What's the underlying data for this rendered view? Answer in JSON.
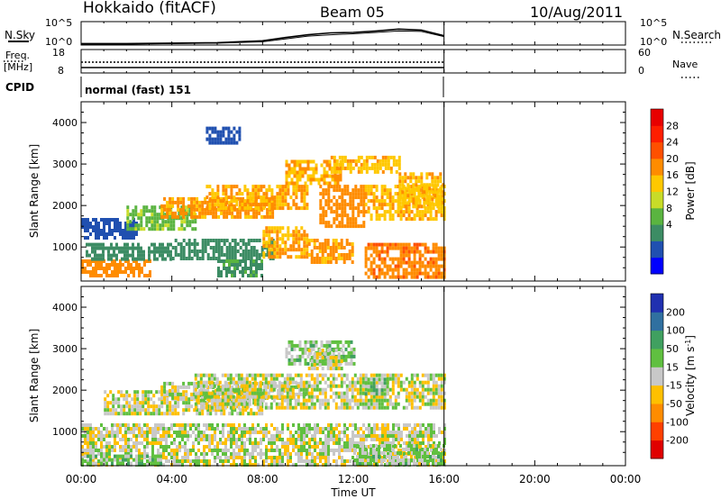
{
  "header": {
    "station": "Hokkaido (fitACF)",
    "beam": "Beam 05",
    "date": "10/Aug/2011"
  },
  "panels": {
    "nsky_label": "N.Sky",
    "nsearch_label": "N.Search",
    "nsky_ticks": [
      "10^5",
      "10^0"
    ],
    "freq_label": "Freq.",
    "freq_unit": "[MHz]",
    "freq_ticks": [
      "18",
      "8"
    ],
    "nave_label": "Nave",
    "nave_ticks": [
      "60",
      "0"
    ],
    "cpid_label": "CPID",
    "cpid_value": "normal (fast) 151"
  },
  "chart_data": [
    {
      "type": "line",
      "name": "noise-panel",
      "series": [
        {
          "name": "N.Sky",
          "x": [
            0,
            2,
            4,
            6,
            8,
            9,
            10,
            11,
            12,
            13,
            14,
            15,
            16
          ],
          "values": [
            0.3,
            0.3,
            0.4,
            0.5,
            0.9,
            1.6,
            2.2,
            2.6,
            2.7,
            3.0,
            3.4,
            3.2,
            2.0
          ]
        },
        {
          "name": "N.Search",
          "x": [
            0,
            2,
            4,
            6,
            8,
            9,
            10,
            11,
            12,
            13,
            14,
            15,
            16
          ],
          "values": [
            0.2,
            0.2,
            0.3,
            0.4,
            0.7,
            1.3,
            1.9,
            2.2,
            2.4,
            2.7,
            3.0,
            2.9,
            1.8
          ]
        }
      ],
      "xlim": [
        0,
        24
      ],
      "ylim": [
        0,
        5
      ]
    },
    {
      "type": "line",
      "name": "freq-nave-panel",
      "series": [
        {
          "name": "Freq.",
          "x": [
            0,
            16
          ],
          "values": [
            10.3,
            10.3
          ]
        },
        {
          "name": "Nave",
          "x": [
            0,
            16
          ],
          "values": [
            15,
            15
          ]
        }
      ],
      "xlim": [
        0,
        24
      ]
    },
    {
      "type": "heatmap",
      "name": "power",
      "ylabel": "Slant Range [km]",
      "xlim": [
        0,
        24
      ],
      "ylim": [
        180,
        4500
      ],
      "yticks": [
        1000,
        2000,
        3000,
        4000
      ],
      "colorbar_label": "Power [dB]",
      "colorbar_ticks": [
        "28",
        "24",
        "20",
        "16",
        "12",
        "8",
        "4"
      ],
      "colorbar_colors": [
        "#0000ff",
        "#2050b0",
        "#3c8c64",
        "#5ab440",
        "#c8dc28",
        "#ffc800",
        "#ff8c00",
        "#ff5000",
        "#ff1e00",
        "#e80000"
      ],
      "colorbar_levels": [
        0,
        4,
        8,
        12,
        16,
        20,
        24,
        28,
        32
      ],
      "regions": [
        {
          "t0": 0.0,
          "t1": 3.0,
          "r0": 300,
          "r1": 700,
          "v": 26
        },
        {
          "t0": 0.2,
          "t1": 4.0,
          "r0": 700,
          "r1": 1100,
          "v": 10
        },
        {
          "t0": 0.0,
          "t1": 2.5,
          "r0": 1200,
          "r1": 1700,
          "v": 6
        },
        {
          "t0": 2.0,
          "t1": 5.0,
          "r0": 1400,
          "r1": 2000,
          "v": 15
        },
        {
          "t0": 3.5,
          "t1": 8.5,
          "r0": 1700,
          "r1": 2200,
          "v": 25
        },
        {
          "t0": 5.5,
          "t1": 10.0,
          "r0": 1900,
          "r1": 2500,
          "v": 24
        },
        {
          "t0": 4.0,
          "t1": 8.5,
          "r0": 700,
          "r1": 1200,
          "v": 10
        },
        {
          "t0": 6.0,
          "t1": 8.0,
          "r0": 300,
          "r1": 700,
          "v": 11
        },
        {
          "t0": 8.0,
          "t1": 10.0,
          "r0": 800,
          "r1": 1500,
          "v": 24
        },
        {
          "t0": 9.0,
          "t1": 11.5,
          "r0": 2500,
          "r1": 3100,
          "v": 24
        },
        {
          "t0": 10.5,
          "t1": 12.5,
          "r0": 1500,
          "r1": 2500,
          "v": 26
        },
        {
          "t0": 11.0,
          "t1": 14.0,
          "r0": 2800,
          "r1": 3200,
          "v": 23
        },
        {
          "t0": 12.5,
          "t1": 16.0,
          "r0": 1700,
          "r1": 2500,
          "v": 23
        },
        {
          "t0": 12.5,
          "t1": 16.0,
          "r0": 300,
          "r1": 1100,
          "v": 27
        },
        {
          "t0": 14.0,
          "t1": 16.0,
          "r0": 2000,
          "r1": 2800,
          "v": 23
        },
        {
          "t0": 10.0,
          "t1": 12.0,
          "r0": 600,
          "r1": 1200,
          "v": 25
        },
        {
          "t0": 5.5,
          "t1": 7.0,
          "r0": 3500,
          "r1": 3900,
          "v": 6
        }
      ]
    },
    {
      "type": "heatmap",
      "name": "velocity",
      "xlabel": "Time UT",
      "ylabel": "Slant Range [km]",
      "xlim": [
        0,
        24
      ],
      "ylim": [
        180,
        4500
      ],
      "xticks": [
        "00:00",
        "04:00",
        "08:00",
        "12:00",
        "16:00",
        "20:00",
        "00:00"
      ],
      "yticks": [
        1000,
        2000,
        3000,
        4000
      ],
      "colorbar_label": "Velocity [m s-1]",
      "colorbar_ticks": [
        "200",
        "100",
        "50",
        "15",
        "-15",
        "-50",
        "-100",
        "-200"
      ],
      "colorbar_colors": [
        "#e00000",
        "#ff4000",
        "#ff8c00",
        "#ffc000",
        "#c8c8c8",
        "#60c040",
        "#40a060",
        "#3070a0",
        "#2030b0"
      ],
      "colorbar_levels": [
        -300,
        -200,
        -100,
        -50,
        -15,
        15,
        50,
        100,
        200,
        300
      ],
      "regions": [
        {
          "t0": 0.0,
          "t1": 16.0,
          "r0": 200,
          "r1": 1200,
          "v": 0
        },
        {
          "t0": 1.0,
          "t1": 8.0,
          "r0": 1400,
          "r1": 2000,
          "v": 0
        },
        {
          "t0": 3.5,
          "t1": 10.0,
          "r0": 1800,
          "r1": 2200,
          "v": 0
        },
        {
          "t0": 5.0,
          "t1": 16.0,
          "r0": 1600,
          "r1": 2400,
          "v": 0
        },
        {
          "t0": 0.0,
          "t1": 3.5,
          "r0": 200,
          "r1": 450,
          "v": 30
        },
        {
          "t0": 12.0,
          "t1": 16.0,
          "r0": 200,
          "r1": 700,
          "v": 20
        },
        {
          "t0": 9.0,
          "t1": 12.0,
          "r0": 2600,
          "r1": 3200,
          "v": 25
        },
        {
          "t0": 12.5,
          "t1": 13.5,
          "r0": 1900,
          "r1": 2300,
          "v": 30
        },
        {
          "t0": 10.0,
          "t1": 11.5,
          "r0": 2500,
          "r1": 3000,
          "v": 0
        }
      ]
    }
  ]
}
